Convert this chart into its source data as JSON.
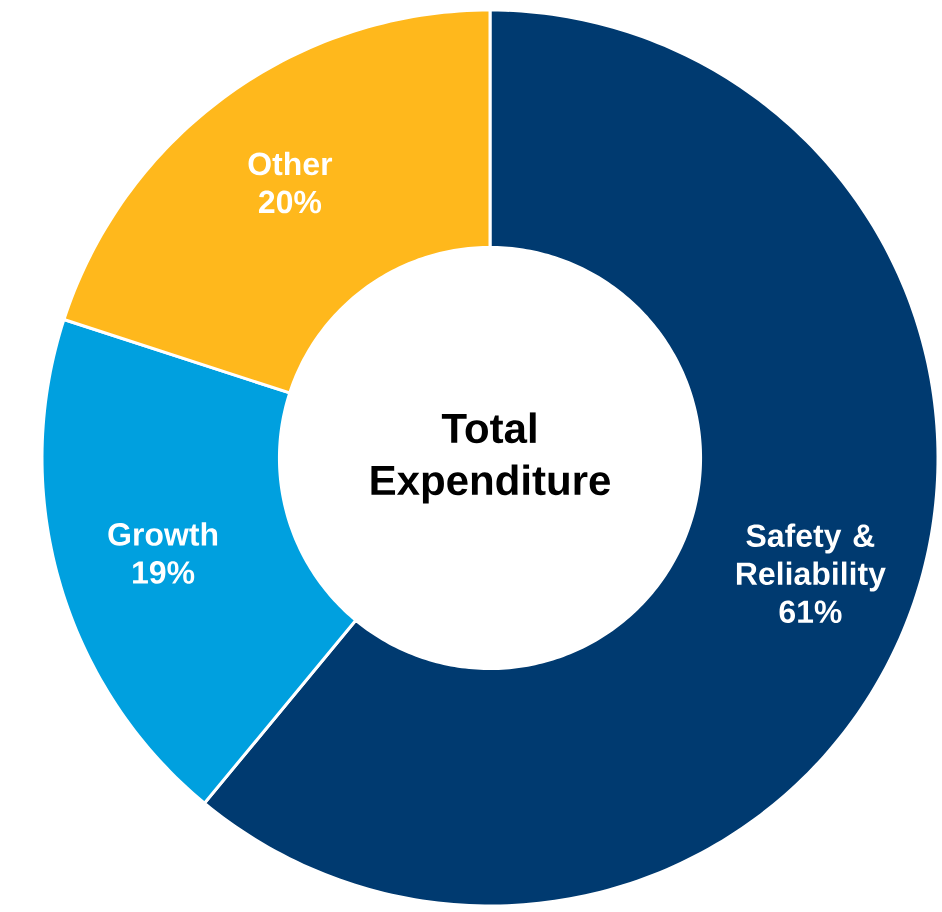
{
  "chart_data": {
    "type": "donut",
    "title": "Total Expenditure",
    "categories": [
      "Safety & Reliability",
      "Growth",
      "Other"
    ],
    "values": [
      61,
      19,
      20
    ],
    "value_labels": [
      "61%",
      "19%",
      "20%"
    ],
    "colors": [
      "#003a70",
      "#00a0df",
      "#ffb81c"
    ]
  }
}
